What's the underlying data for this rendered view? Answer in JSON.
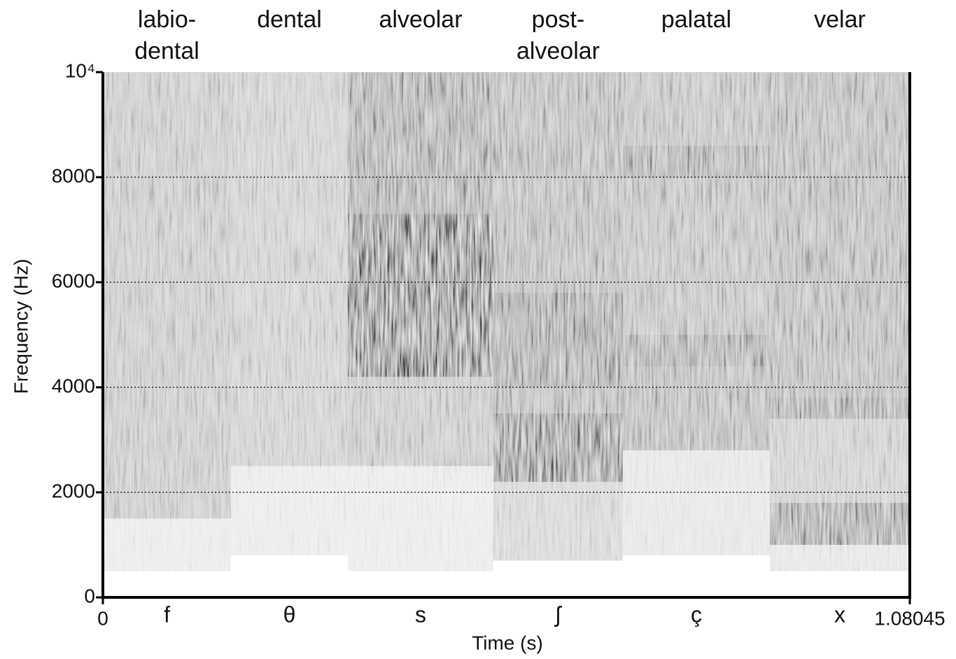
{
  "chart_data": {
    "type": "spectrogram",
    "x_label": "Time (s)",
    "y_label": "Frequency (Hz)",
    "xlim": [
      0,
      1.08045
    ],
    "xticks": [
      0,
      1.08045
    ],
    "ylim": [
      0,
      10000
    ],
    "yticks": [
      0,
      2000,
      4000,
      6000,
      8000,
      {
        "value": 10000,
        "label": "10⁴"
      }
    ],
    "grid": true,
    "color": "#1a1a1a",
    "segments": [
      {
        "label": "f",
        "place": [
          "labio-",
          "dental"
        ],
        "start": 0,
        "end": 0.1715,
        "bands": [
          [
            500,
            1500,
            0.12
          ],
          [
            1500,
            10000,
            0.35
          ]
        ]
      },
      {
        "label": "θ",
        "place": [
          "dental"
        ],
        "start": 0.1715,
        "end": 0.328,
        "bands": [
          [
            800,
            2500,
            0.12
          ],
          [
            2500,
            10000,
            0.3
          ]
        ]
      },
      {
        "label": "s",
        "place": [
          "alveolar"
        ],
        "start": 0.328,
        "end": 0.5229,
        "bands": [
          [
            500,
            2500,
            0.12
          ],
          [
            2500,
            4200,
            0.35
          ],
          [
            4200,
            7300,
            0.85
          ],
          [
            7300,
            10000,
            0.55
          ]
        ]
      },
      {
        "label": "ʃ",
        "place": [
          "post-",
          "alveolar"
        ],
        "start": 0.5229,
        "end": 0.6962,
        "bands": [
          [
            700,
            2200,
            0.25
          ],
          [
            2200,
            3500,
            0.75
          ],
          [
            3500,
            4000,
            0.45
          ],
          [
            4000,
            5800,
            0.6
          ],
          [
            5800,
            10000,
            0.45
          ]
        ]
      },
      {
        "label": "ç",
        "place": [
          "palatal"
        ],
        "start": 0.6962,
        "end": 0.893,
        "bands": [
          [
            800,
            2800,
            0.15
          ],
          [
            2800,
            4400,
            0.45
          ],
          [
            4400,
            5000,
            0.55
          ],
          [
            5000,
            8000,
            0.4
          ],
          [
            8000,
            8600,
            0.55
          ],
          [
            8600,
            10000,
            0.4
          ]
        ]
      },
      {
        "label": "x",
        "place": [
          "velar"
        ],
        "start": 0.893,
        "end": 1.08045,
        "bands": [
          [
            500,
            1000,
            0.15
          ],
          [
            1000,
            1800,
            0.6
          ],
          [
            1800,
            3400,
            0.3
          ],
          [
            3400,
            3800,
            0.55
          ],
          [
            3800,
            10000,
            0.45
          ]
        ]
      }
    ]
  }
}
